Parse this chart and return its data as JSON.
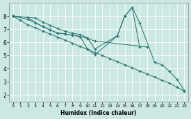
{
  "bg_color": "#cce8e4",
  "line_color": "#2d7a6e",
  "grid_color": "#b0d8d0",
  "xlabel": "Humidex (Indice chaleur)",
  "xlim": [
    -0.5,
    23.5
  ],
  "ylim": [
    1.5,
    9.0
  ],
  "yticks": [
    2,
    3,
    4,
    5,
    6,
    7,
    8
  ],
  "xticks": [
    0,
    1,
    2,
    3,
    4,
    5,
    6,
    7,
    8,
    9,
    10,
    11,
    12,
    13,
    14,
    15,
    16,
    17,
    18,
    19,
    20,
    21,
    22,
    23
  ],
  "line1_x": [
    0,
    1,
    2,
    3,
    4,
    5,
    6,
    7,
    8,
    9,
    10,
    11,
    12,
    13,
    14,
    15,
    16,
    17,
    18,
    19,
    20,
    21,
    22,
    23
  ],
  "line1_y": [
    8.0,
    7.67,
    7.33,
    7.1,
    6.87,
    6.63,
    6.4,
    6.17,
    5.93,
    5.7,
    5.47,
    5.23,
    5.0,
    4.77,
    4.53,
    4.3,
    4.07,
    3.83,
    3.6,
    3.37,
    3.13,
    2.9,
    2.6,
    2.3
  ],
  "line2_x": [
    0,
    3,
    4,
    5,
    6,
    7,
    8,
    9,
    10,
    11,
    14,
    15,
    16,
    17
  ],
  "line2_y": [
    8.0,
    7.85,
    7.55,
    7.3,
    7.05,
    6.85,
    6.7,
    6.6,
    6.35,
    5.5,
    6.5,
    8.0,
    8.65,
    5.65
  ],
  "line3_x": [
    0,
    2,
    3,
    4,
    5,
    6,
    7,
    8,
    9,
    10,
    11,
    18
  ],
  "line3_y": [
    8.0,
    7.75,
    7.5,
    7.2,
    6.95,
    6.7,
    6.65,
    6.55,
    6.45,
    6.3,
    6.1,
    5.65
  ],
  "line4_x": [
    0,
    2,
    3,
    4,
    5,
    6,
    7,
    8,
    9,
    10,
    11,
    14,
    15,
    16,
    17,
    19,
    20,
    21,
    22,
    23
  ],
  "line4_y": [
    8.0,
    7.9,
    7.5,
    7.2,
    6.95,
    6.7,
    6.65,
    6.55,
    6.45,
    5.5,
    5.05,
    6.5,
    8.0,
    8.65,
    7.5,
    4.5,
    4.3,
    3.8,
    3.2,
    2.35
  ]
}
